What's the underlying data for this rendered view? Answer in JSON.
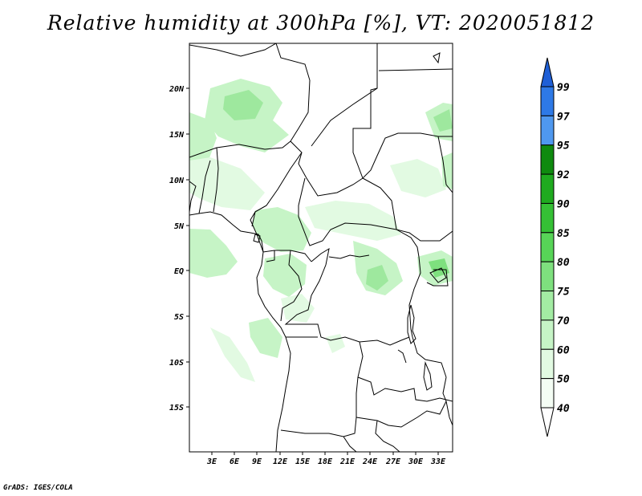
{
  "title": "Relative humidity at 300hPa [%], VT: 2020051812",
  "credit": "GrADS: IGES/COLA",
  "map": {
    "lat_labels": [
      "20N",
      "15N",
      "10N",
      "5N",
      "EQ",
      "5S",
      "10S",
      "15S"
    ],
    "lon_labels": [
      "3E",
      "6E",
      "9E",
      "12E",
      "15E",
      "18E",
      "21E",
      "24E",
      "27E",
      "30E",
      "33E"
    ]
  },
  "colorbar": {
    "levels": [
      "99",
      "97",
      "95",
      "92",
      "90",
      "85",
      "80",
      "75",
      "70",
      "60",
      "50",
      "40"
    ],
    "colors": [
      "#1f5fd6",
      "#2e79e6",
      "#4f98ef",
      "#0f8a0f",
      "#1faa1f",
      "#35c035",
      "#57d457",
      "#7ee07e",
      "#a3eca3",
      "#c6f4c6",
      "#e2fae2",
      "#f4fdf4"
    ]
  }
}
